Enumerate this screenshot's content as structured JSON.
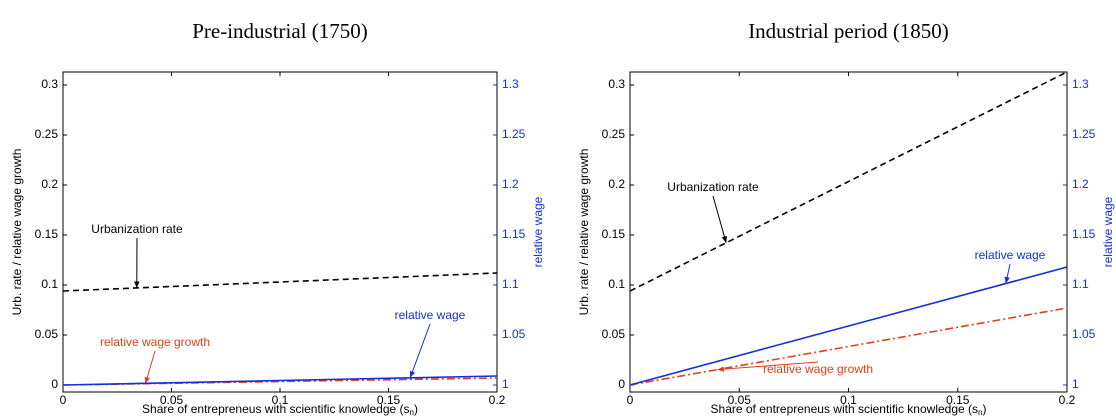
{
  "chart_data": [
    {
      "type": "line",
      "title": "Pre-industrial (1750)",
      "ylabel": "Urb. rate / relative wage growth",
      "y2label": "relative wage",
      "xlabel": {
        "text": "Share of entrepreneus with scientific knowledge (s",
        "subscript": "n",
        "suffix": ")"
      },
      "x": [
        0,
        0.2
      ],
      "series": [
        {
          "name": "Urbanization rate",
          "color": "#000000",
          "style": "dashed",
          "values": [
            0.094,
            0.112
          ]
        },
        {
          "name": "relative wage growth",
          "color": "#e0401a",
          "style": "dashdot",
          "values": [
            0,
            0.007
          ]
        },
        {
          "name": "relative wage",
          "color": "#1530d8",
          "style": "solid",
          "axis": "y2",
          "values": [
            1.0,
            1.009
          ]
        }
      ],
      "xlim": [
        0,
        0.2
      ],
      "xticks": [
        0,
        0.05,
        0.1,
        0.15,
        0.2
      ],
      "ylim": [
        -0.007,
        0.313
      ],
      "yticks": [
        0,
        0.05,
        0.1,
        0.15,
        0.2,
        0.25,
        0.3
      ],
      "y2lim": [
        0.993,
        1.313
      ],
      "y2ticks": [
        1,
        1.05,
        1.1,
        1.15,
        1.2,
        1.25,
        1.3
      ],
      "y2color": "#1530d8"
    },
    {
      "type": "line",
      "title": "Industrial period (1850)",
      "ylabel": "Urb. rate / relative wage growth",
      "y2label": "relative wage",
      "xlabel": {
        "text": "Share of entrepreneus with scientific knowledge (s",
        "subscript": "n",
        "suffix": ")"
      },
      "x": [
        0,
        0.2
      ],
      "series": [
        {
          "name": "Urbanization rate",
          "color": "#000000",
          "style": "dashed",
          "values": [
            0.094,
            0.313
          ]
        },
        {
          "name": "relative wage growth",
          "color": "#e0401a",
          "style": "dashdot",
          "values": [
            0,
            0.077
          ]
        },
        {
          "name": "relative wage",
          "color": "#1530d8",
          "style": "solid",
          "axis": "y2",
          "values": [
            1.0,
            1.118
          ]
        }
      ],
      "xlim": [
        0,
        0.2
      ],
      "xticks": [
        0,
        0.05,
        0.1,
        0.15,
        0.2
      ],
      "ylim": [
        -0.007,
        0.313
      ],
      "yticks": [
        0,
        0.05,
        0.1,
        0.15,
        0.2,
        0.25,
        0.3
      ],
      "y2lim": [
        0.993,
        1.313
      ],
      "y2ticks": [
        1,
        1.05,
        1.1,
        1.15,
        1.2,
        1.25,
        1.3
      ],
      "y2color": "#1530d8"
    }
  ]
}
